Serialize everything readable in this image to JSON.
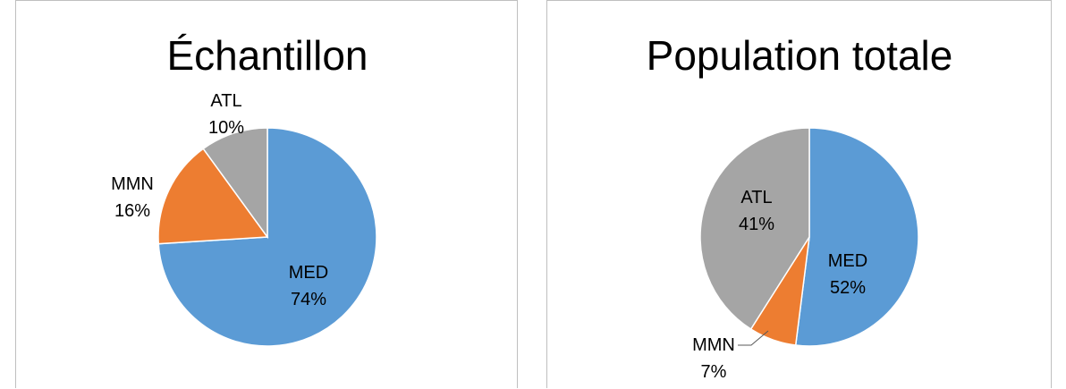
{
  "chart_data": [
    {
      "type": "pie",
      "title": "Échantillon",
      "categories": [
        "MED",
        "MMN",
        "ATL"
      ],
      "values": [
        74,
        16,
        10
      ],
      "labels": [
        "74%",
        "16%",
        "10%"
      ],
      "colors": [
        "#5b9bd5",
        "#ed7d31",
        "#a5a5a5"
      ],
      "start_angle_deg": 0,
      "direction": "clockwise",
      "legend": "none"
    },
    {
      "type": "pie",
      "title": "Population totale",
      "categories": [
        "MED",
        "MMN",
        "ATL"
      ],
      "values": [
        52,
        7,
        41
      ],
      "labels": [
        "52%",
        "7%",
        "41%"
      ],
      "colors": [
        "#5b9bd5",
        "#ed7d31",
        "#a5a5a5"
      ],
      "start_angle_deg": 0,
      "direction": "clockwise",
      "legend": "none"
    }
  ]
}
